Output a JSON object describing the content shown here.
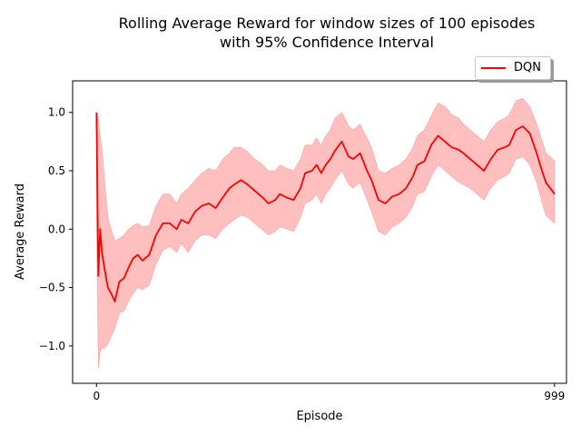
{
  "chart_data": {
    "type": "line",
    "title": "Rolling Average Reward for window sizes of 100 episodes\nwith 95% Confidence Interval",
    "title_lines": [
      "Rolling Average Reward for window sizes of 100 episodes",
      "with 95% Confidence Interval"
    ],
    "xlabel": "Episode",
    "ylabel": "Average Reward",
    "xlim": [
      -52,
      1025
    ],
    "ylim": [
      -1.32,
      1.27
    ],
    "x_ticks": [
      0,
      999
    ],
    "x_tick_labels": [
      "0",
      "999"
    ],
    "y_ticks": [
      -1.0,
      -0.5,
      0.0,
      0.5,
      1.0
    ],
    "y_tick_labels": [
      "−1.0",
      "−0.5",
      "0.0",
      "0.5",
      "1.0"
    ],
    "grid": false,
    "legend": {
      "position": "top-right, above plot",
      "entries": [
        "DQN"
      ]
    },
    "colors": {
      "line": "#ff0000",
      "band": "#ff0000",
      "band_opacity": 0.25
    },
    "series": [
      {
        "name": "DQN",
        "x": [
          0,
          4,
          8,
          12,
          18,
          25,
          32,
          40,
          50,
          60,
          70,
          80,
          90,
          100,
          115,
          130,
          145,
          160,
          175,
          185,
          200,
          215,
          230,
          245,
          260,
          275,
          290,
          300,
          315,
          330,
          345,
          360,
          375,
          390,
          400,
          415,
          430,
          445,
          455,
          470,
          480,
          490,
          500,
          510,
          520,
          535,
          550,
          560,
          575,
          590,
          600,
          615,
          630,
          645,
          660,
          675,
          690,
          700,
          715,
          730,
          745,
          760,
          775,
          790,
          800,
          815,
          830,
          845,
          860,
          875,
          890,
          900,
          915,
          930,
          945,
          960,
          970,
          980,
          990,
          999
        ],
        "y": [
          1.0,
          -0.4,
          0.0,
          -0.2,
          -0.35,
          -0.5,
          -0.55,
          -0.62,
          -0.45,
          -0.42,
          -0.33,
          -0.25,
          -0.22,
          -0.27,
          -0.22,
          -0.05,
          0.05,
          0.05,
          0.0,
          0.08,
          0.05,
          0.15,
          0.2,
          0.22,
          0.18,
          0.27,
          0.35,
          0.38,
          0.42,
          0.38,
          0.33,
          0.28,
          0.22,
          0.25,
          0.3,
          0.27,
          0.25,
          0.35,
          0.48,
          0.5,
          0.55,
          0.48,
          0.55,
          0.6,
          0.67,
          0.75,
          0.62,
          0.6,
          0.65,
          0.5,
          0.42,
          0.25,
          0.22,
          0.28,
          0.3,
          0.35,
          0.45,
          0.55,
          0.58,
          0.72,
          0.8,
          0.75,
          0.7,
          0.68,
          0.65,
          0.6,
          0.55,
          0.5,
          0.6,
          0.68,
          0.7,
          0.72,
          0.85,
          0.88,
          0.82,
          0.65,
          0.52,
          0.4,
          0.35,
          0.3
        ],
        "upper": [
          1.0,
          0.95,
          0.8,
          0.7,
          0.4,
          0.1,
          0.0,
          -0.1,
          -0.08,
          -0.05,
          0.0,
          0.03,
          0.05,
          0.02,
          0.03,
          0.2,
          0.3,
          0.3,
          0.22,
          0.3,
          0.35,
          0.42,
          0.48,
          0.52,
          0.5,
          0.6,
          0.65,
          0.7,
          0.7,
          0.66,
          0.6,
          0.56,
          0.5,
          0.5,
          0.55,
          0.52,
          0.5,
          0.6,
          0.72,
          0.72,
          0.78,
          0.72,
          0.8,
          0.85,
          0.95,
          1.0,
          0.88,
          0.85,
          0.9,
          0.78,
          0.7,
          0.5,
          0.48,
          0.52,
          0.55,
          0.6,
          0.7,
          0.8,
          0.85,
          0.97,
          1.08,
          1.05,
          0.98,
          0.95,
          0.9,
          0.85,
          0.8,
          0.75,
          0.85,
          0.92,
          0.95,
          0.98,
          1.1,
          1.12,
          1.05,
          0.9,
          0.78,
          0.65,
          0.62,
          0.58
        ],
        "lower": [
          0.0,
          -1.2,
          -1.05,
          -1.02,
          -1.02,
          -0.98,
          -0.92,
          -0.85,
          -0.72,
          -0.7,
          -0.62,
          -0.55,
          -0.5,
          -0.52,
          -0.48,
          -0.3,
          -0.18,
          -0.15,
          -0.2,
          -0.12,
          -0.2,
          -0.1,
          -0.05,
          -0.05,
          -0.08,
          0.0,
          0.05,
          0.08,
          0.12,
          0.1,
          0.05,
          0.0,
          -0.05,
          -0.02,
          0.02,
          0.0,
          -0.02,
          0.1,
          0.22,
          0.25,
          0.3,
          0.22,
          0.3,
          0.35,
          0.42,
          0.5,
          0.38,
          0.35,
          0.4,
          0.25,
          0.15,
          -0.02,
          -0.05,
          0.02,
          0.05,
          0.1,
          0.2,
          0.3,
          0.32,
          0.45,
          0.55,
          0.5,
          0.45,
          0.4,
          0.38,
          0.35,
          0.3,
          0.25,
          0.35,
          0.42,
          0.45,
          0.48,
          0.6,
          0.62,
          0.55,
          0.4,
          0.25,
          0.12,
          0.08,
          0.05
        ]
      }
    ]
  }
}
